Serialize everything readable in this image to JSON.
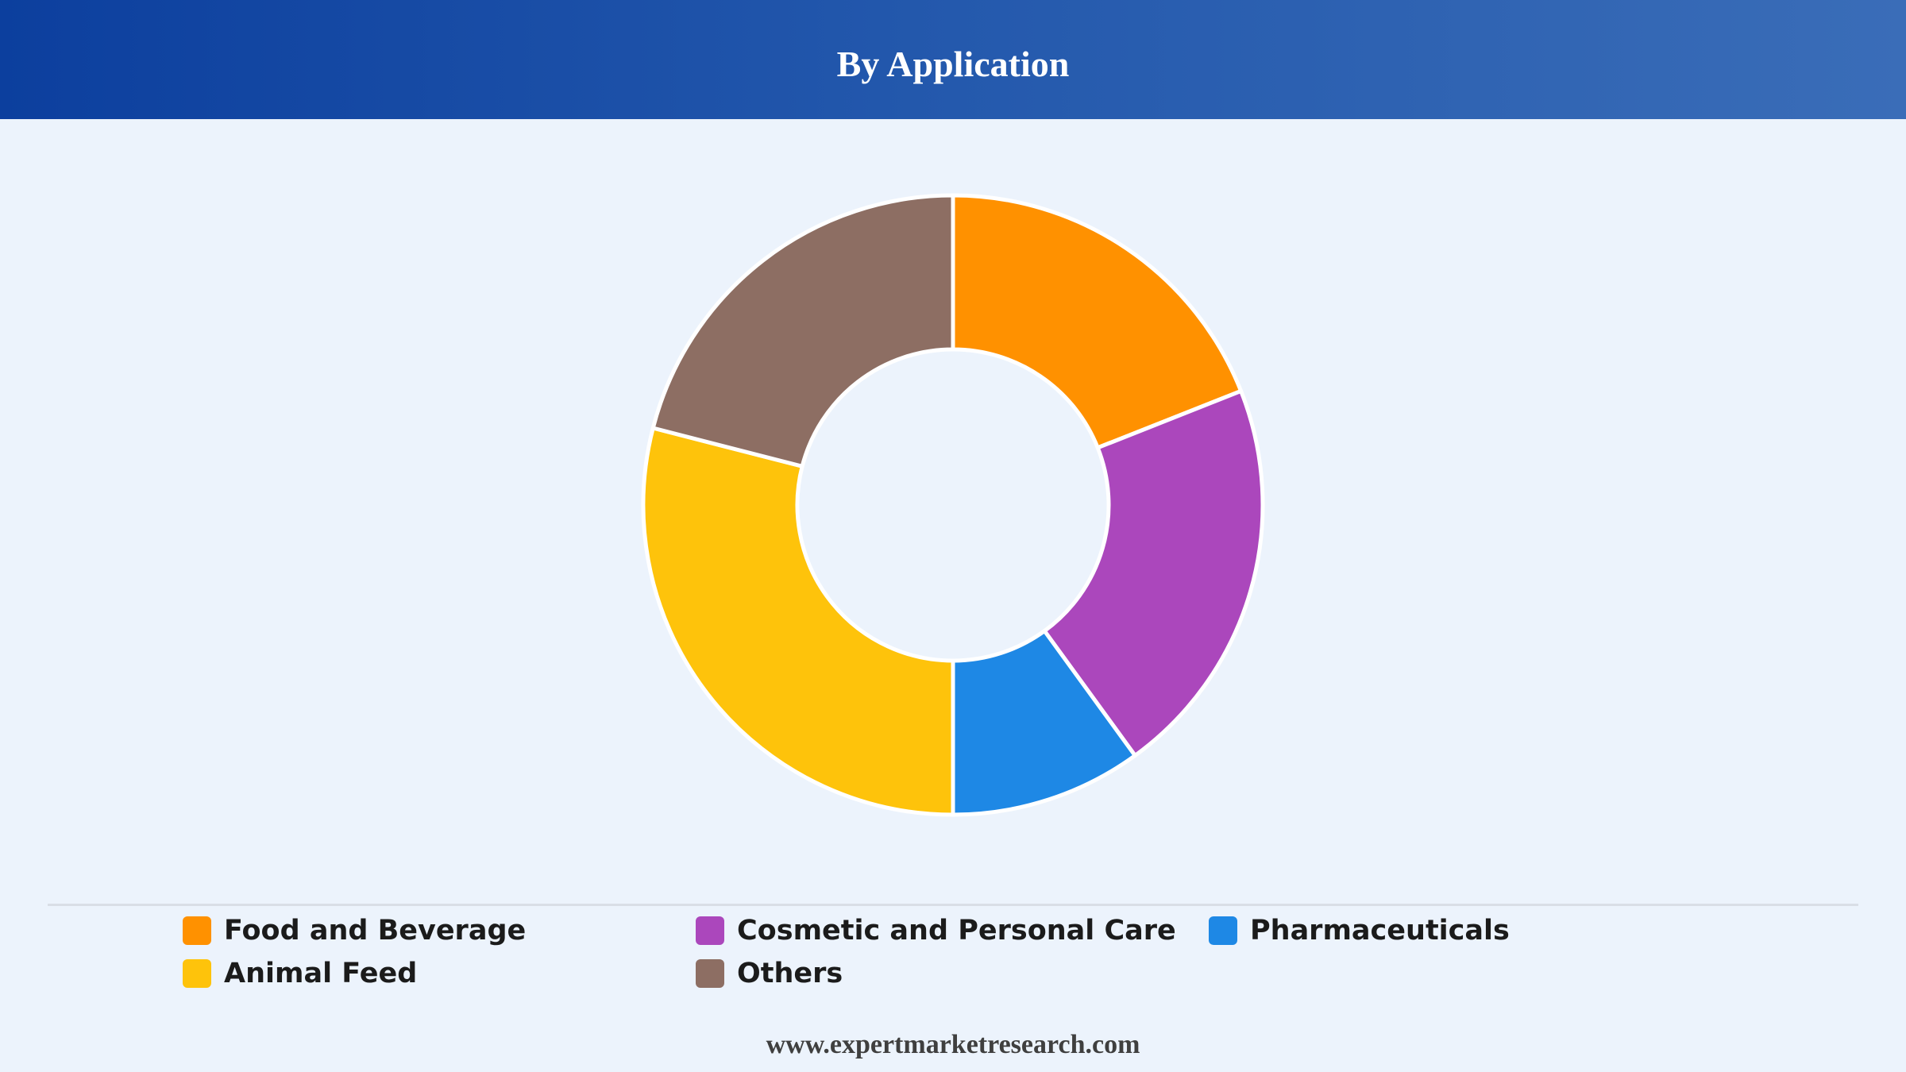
{
  "header": {
    "title": "By Application"
  },
  "chart_data": {
    "type": "pie",
    "variant": "donut",
    "title": "By Application",
    "series": [
      {
        "name": "Food and Beverage",
        "value": 19,
        "color": "#ff9100"
      },
      {
        "name": "Cosmetic and Personal Care",
        "value": 21,
        "color": "#ab47bc"
      },
      {
        "name": "Pharmaceuticals",
        "value": 10,
        "color": "#1e88e5"
      },
      {
        "name": "Animal Feed",
        "value": 29,
        "color": "#fec30b"
      },
      {
        "name": "Others",
        "value": 21,
        "color": "#8d6e63"
      }
    ],
    "legend_position": "bottom"
  },
  "footer": {
    "text": "www.expertmarketresearch.com"
  }
}
